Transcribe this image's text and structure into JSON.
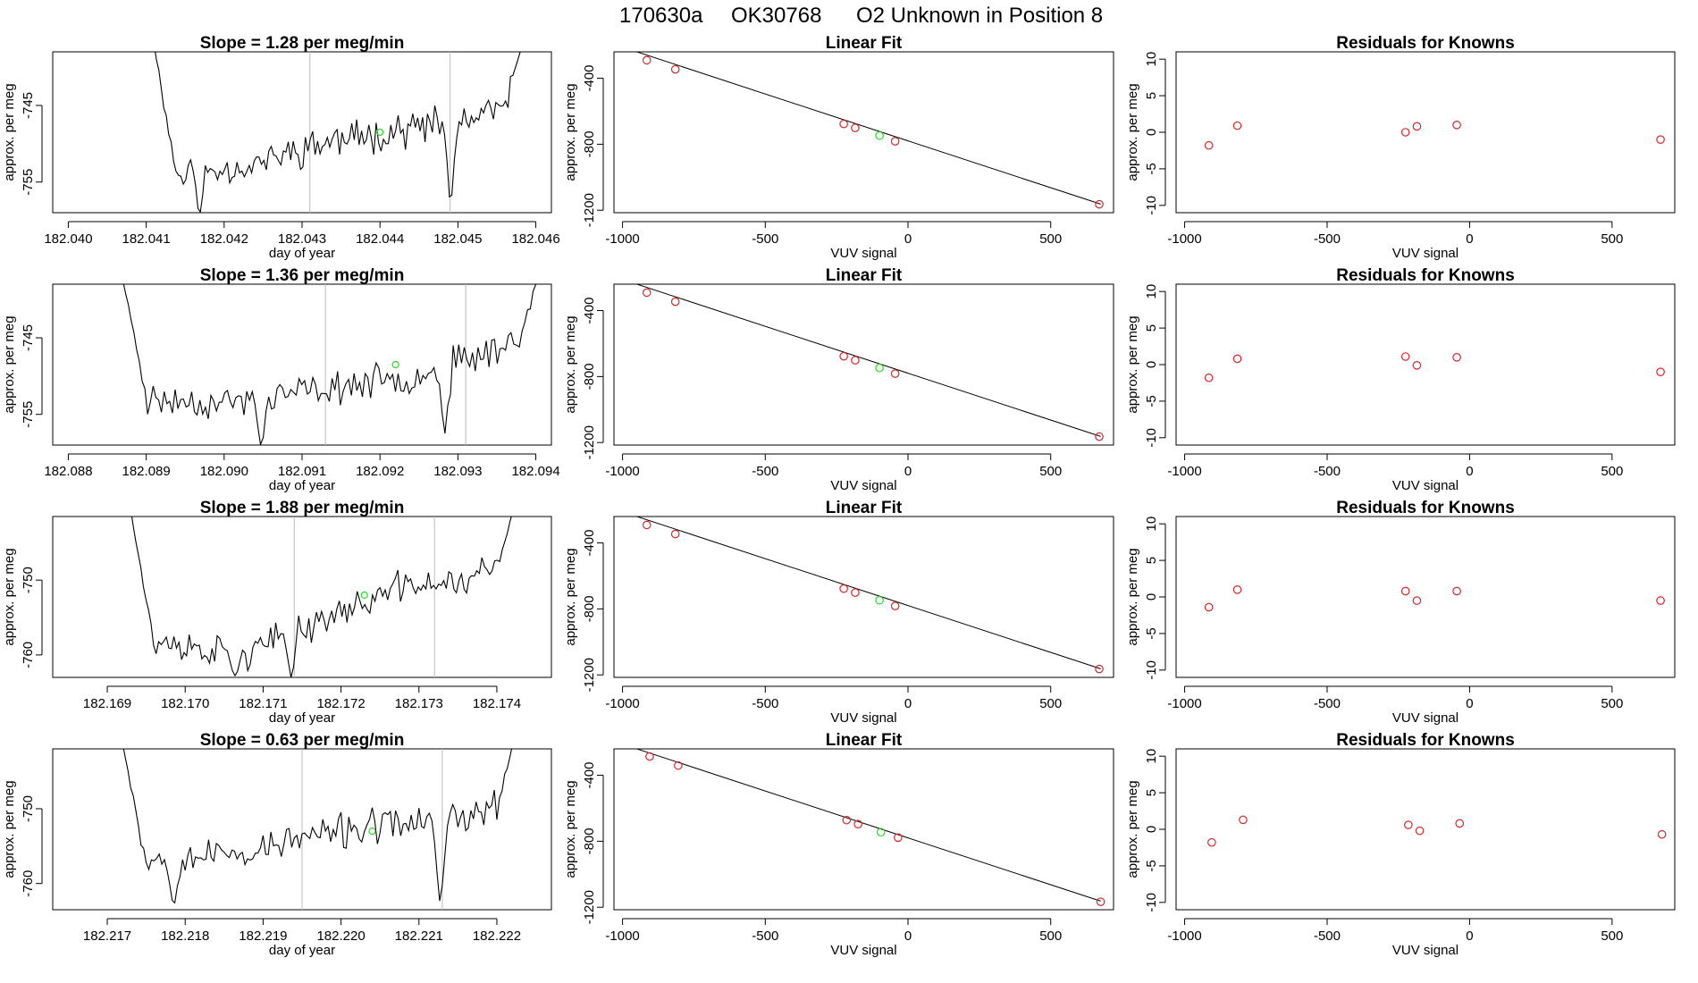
{
  "page_title": {
    "date": "170630a",
    "sample": "OK30768",
    "description": "O2 Unknown in Position  8"
  },
  "colors": {
    "line": "#000000",
    "known": "#d62728",
    "unknown": "#22dd22",
    "vline": "#bbbbbb"
  },
  "chart_data": [
    {
      "row": 1,
      "panel": "time-series",
      "type": "line",
      "title": "Slope =  1.28  per meg/min",
      "xlabel": "day of year",
      "ylabel": "approx. per meg",
      "xlim": [
        182.0398,
        182.0462
      ],
      "ylim": [
        -759.0,
        -738.0
      ],
      "xticks": [
        182.04,
        182.041,
        182.042,
        182.043,
        182.044,
        182.045,
        182.046
      ],
      "xtick_labels": [
        "182.040",
        "182.041",
        "182.042",
        "182.043",
        "182.044",
        "182.045",
        "182.046"
      ],
      "yticks": [
        -745,
        -755
      ],
      "ytick_labels": [
        "-745",
        "-755"
      ],
      "vlines": [
        182.0431,
        182.0449
      ],
      "unknown_point": {
        "x": 182.044,
        "y": -748.5
      },
      "series": {
        "x_start": 182.0411,
        "x_end": 182.0458,
        "start": -737.0,
        "end": -738.0,
        "baseline": [
          [
            0,
            -754
          ],
          [
            0.25,
            -753
          ],
          [
            0.45,
            -750
          ],
          [
            0.7,
            -748
          ],
          [
            0.88,
            -747
          ],
          [
            1,
            -744
          ]
        ],
        "noise": 2.8,
        "seed": 11,
        "dips": [
          [
            0.125,
            -759.5
          ],
          [
            0.81,
            -759
          ]
        ]
      }
    },
    {
      "row": 1,
      "panel": "linear-fit",
      "type": "scatter",
      "title": "Linear Fit",
      "xlabel": "VUV signal",
      "ylabel": "approx. per meg",
      "xlim": [
        -1030,
        720
      ],
      "ylim": [
        -1215,
        -240
      ],
      "xticks": [
        -1000,
        -500,
        0,
        500
      ],
      "xtick_labels": [
        "-1000",
        "-500",
        "0",
        "500"
      ],
      "yticks": [
        -400,
        -800,
        -1200
      ],
      "ytick_labels": [
        "-400",
        "-800",
        "-1200"
      ],
      "fit_line": [
        [
          -955,
          -237
        ],
        [
          675,
          -1163
        ]
      ],
      "known_points": [
        [
          -915,
          -291
        ],
        [
          -815,
          -346
        ],
        [
          -225,
          -677
        ],
        [
          -185,
          -701
        ],
        [
          -45,
          -782
        ],
        [
          670,
          -1164
        ]
      ],
      "unknown_points": [
        [
          -100,
          -748
        ]
      ]
    },
    {
      "row": 1,
      "panel": "residuals",
      "type": "scatter",
      "title": "Residuals for Knowns",
      "xlabel": "VUV signal",
      "ylabel": "approx. per meg",
      "xlim": [
        -1030,
        720
      ],
      "ylim": [
        -11,
        11
      ],
      "xticks": [
        -1000,
        -500,
        0,
        500
      ],
      "xtick_labels": [
        "-1000",
        "-500",
        "0",
        "500"
      ],
      "yticks": [
        10,
        5,
        0,
        -5,
        -10
      ],
      "ytick_labels": [
        "10",
        "5",
        "0",
        "-5",
        "-10"
      ],
      "known_points": [
        [
          -915,
          -1.8
        ],
        [
          -815,
          0.9
        ],
        [
          -225,
          0.0
        ],
        [
          -185,
          0.8
        ],
        [
          -45,
          1.0
        ],
        [
          670,
          -1.0
        ]
      ]
    },
    {
      "row": 2,
      "panel": "time-series",
      "type": "line",
      "title": "Slope =  1.36  per meg/min",
      "xlabel": "day of year",
      "ylabel": "approx. per meg",
      "xlim": [
        182.0878,
        182.0942
      ],
      "ylim": [
        -759.0,
        -738.0
      ],
      "xticks": [
        182.088,
        182.089,
        182.09,
        182.091,
        182.092,
        182.093,
        182.094
      ],
      "xtick_labels": [
        "182.088",
        "182.089",
        "182.090",
        "182.091",
        "182.092",
        "182.093",
        "182.094"
      ],
      "yticks": [
        -745,
        -755
      ],
      "ytick_labels": [
        "-745",
        "-755"
      ],
      "vlines": [
        182.0913,
        182.0931
      ],
      "unknown_point": {
        "x": 182.0922,
        "y": -748.5
      },
      "series": {
        "x_start": 182.0887,
        "x_end": 182.094,
        "start": -737.5,
        "end": -738.0,
        "baseline": [
          [
            0,
            -753
          ],
          [
            0.25,
            -753.5
          ],
          [
            0.45,
            -752
          ],
          [
            0.7,
            -750
          ],
          [
            0.88,
            -747
          ],
          [
            1,
            -744
          ]
        ],
        "noise": 2.6,
        "seed": 23,
        "dips": [
          [
            0.335,
            -759.5
          ],
          [
            0.78,
            -757.5
          ]
        ]
      }
    },
    {
      "row": 2,
      "panel": "linear-fit",
      "type": "scatter",
      "title": "Linear Fit",
      "xlabel": "VUV signal",
      "ylabel": "approx. per meg",
      "xlim": [
        -1030,
        720
      ],
      "ylim": [
        -1215,
        -240
      ],
      "xticks": [
        -1000,
        -500,
        0,
        500
      ],
      "xtick_labels": [
        "-1000",
        "-500",
        "0",
        "500"
      ],
      "yticks": [
        -400,
        -800,
        -1200
      ],
      "ytick_labels": [
        "-400",
        "-800",
        "-1200"
      ],
      "fit_line": [
        [
          -955,
          -237
        ],
        [
          675,
          -1163
        ]
      ],
      "known_points": [
        [
          -915,
          -291
        ],
        [
          -815,
          -346
        ],
        [
          -225,
          -677
        ],
        [
          -185,
          -701
        ],
        [
          -45,
          -782
        ],
        [
          670,
          -1164
        ]
      ],
      "unknown_points": [
        [
          -100,
          -748
        ]
      ]
    },
    {
      "row": 2,
      "panel": "residuals",
      "type": "scatter",
      "title": "Residuals for Knowns",
      "xlabel": "VUV signal",
      "ylabel": "approx. per meg",
      "xlim": [
        -1030,
        720
      ],
      "ylim": [
        -11,
        11
      ],
      "xticks": [
        -1000,
        -500,
        0,
        500
      ],
      "xtick_labels": [
        "-1000",
        "-500",
        "0",
        "500"
      ],
      "yticks": [
        10,
        5,
        0,
        -5,
        -10
      ],
      "ytick_labels": [
        "10",
        "5",
        "0",
        "-5",
        "-10"
      ],
      "known_points": [
        [
          -915,
          -1.8
        ],
        [
          -815,
          0.8
        ],
        [
          -225,
          1.1
        ],
        [
          -185,
          -0.1
        ],
        [
          -45,
          1.0
        ],
        [
          670,
          -1.0
        ]
      ]
    },
    {
      "row": 3,
      "panel": "time-series",
      "type": "line",
      "title": "Slope =  1.88  per meg/min",
      "xlabel": "day of year",
      "ylabel": "approx. per meg",
      "xlim": [
        182.1683,
        182.1747
      ],
      "ylim": [
        -763.0,
        -741.5
      ],
      "xticks": [
        182.169,
        182.17,
        182.171,
        182.172,
        182.173,
        182.174
      ],
      "xtick_labels": [
        "182.169",
        "182.170",
        "182.171",
        "182.172",
        "182.173",
        "182.174"
      ],
      "yticks": [
        -750,
        -760
      ],
      "ytick_labels": [
        "-750",
        "-760"
      ],
      "vlines": [
        182.1714,
        182.1732
      ],
      "unknown_point": {
        "x": 182.1723,
        "y": -752.0
      },
      "series": {
        "x_start": 182.1693,
        "x_end": 182.1742,
        "start": -740.5,
        "end": -741.0,
        "baseline": [
          [
            0,
            -758
          ],
          [
            0.3,
            -760
          ],
          [
            0.45,
            -756.5
          ],
          [
            0.7,
            -751
          ],
          [
            0.88,
            -750
          ],
          [
            1,
            -747
          ]
        ],
        "noise": 2.6,
        "seed": 37,
        "dips": [
          [
            0.275,
            -763
          ],
          [
            0.42,
            -763
          ]
        ]
      }
    },
    {
      "row": 3,
      "panel": "linear-fit",
      "type": "scatter",
      "title": "Linear Fit",
      "xlabel": "VUV signal",
      "ylabel": "approx. per meg",
      "xlim": [
        -1030,
        720
      ],
      "ylim": [
        -1215,
        -240
      ],
      "xticks": [
        -1000,
        -500,
        0,
        500
      ],
      "xtick_labels": [
        "-1000",
        "-500",
        "0",
        "500"
      ],
      "yticks": [
        -400,
        -800,
        -1200
      ],
      "ytick_labels": [
        "-400",
        "-800",
        "-1200"
      ],
      "fit_line": [
        [
          -955,
          -237
        ],
        [
          675,
          -1163
        ]
      ],
      "known_points": [
        [
          -915,
          -291
        ],
        [
          -815,
          -346
        ],
        [
          -225,
          -677
        ],
        [
          -185,
          -701
        ],
        [
          -45,
          -782
        ],
        [
          670,
          -1164
        ]
      ],
      "unknown_points": [
        [
          -100,
          -748
        ]
      ]
    },
    {
      "row": 3,
      "panel": "residuals",
      "type": "scatter",
      "title": "Residuals for Knowns",
      "xlabel": "VUV signal",
      "ylabel": "approx. per meg",
      "xlim": [
        -1030,
        720
      ],
      "ylim": [
        -11,
        11
      ],
      "xticks": [
        -1000,
        -500,
        0,
        500
      ],
      "xtick_labels": [
        "-1000",
        "-500",
        "0",
        "500"
      ],
      "yticks": [
        10,
        5,
        0,
        -5,
        -10
      ],
      "ytick_labels": [
        "10",
        "5",
        "0",
        "-5",
        "-10"
      ],
      "known_points": [
        [
          -915,
          -1.4
        ],
        [
          -815,
          1.0
        ],
        [
          -225,
          0.8
        ],
        [
          -185,
          -0.5
        ],
        [
          -45,
          0.8
        ],
        [
          670,
          -0.5
        ]
      ]
    },
    {
      "row": 4,
      "panel": "time-series",
      "type": "line",
      "title": "Slope =  0.63  per meg/min",
      "xlabel": "day of year",
      "ylabel": "approx. per meg",
      "xlim": [
        182.2163,
        182.2227
      ],
      "ylim": [
        -763.5,
        -742.0
      ],
      "xticks": [
        182.217,
        182.218,
        182.219,
        182.22,
        182.221,
        182.222
      ],
      "xtick_labels": [
        "182.217",
        "182.218",
        "182.219",
        "182.220",
        "182.221",
        "182.222"
      ],
      "yticks": [
        -750,
        -760
      ],
      "ytick_labels": [
        "-750",
        "-760"
      ],
      "vlines": [
        182.2195,
        182.2213
      ],
      "unknown_point": {
        "x": 182.2204,
        "y": -753.0
      },
      "series": {
        "x_start": 182.2172,
        "x_end": 182.2222,
        "start": -741.5,
        "end": -741.5,
        "baseline": [
          [
            0,
            -757
          ],
          [
            0.3,
            -756
          ],
          [
            0.5,
            -753.5
          ],
          [
            0.7,
            -752
          ],
          [
            0.85,
            -751.5
          ],
          [
            1,
            -749
          ]
        ],
        "noise": 2.8,
        "seed": 53,
        "dips": [
          [
            0.13,
            -763.5
          ],
          [
            0.815,
            -763.5
          ]
        ]
      }
    },
    {
      "row": 4,
      "panel": "linear-fit",
      "type": "scatter",
      "title": "Linear Fit",
      "xlabel": "VUV signal",
      "ylabel": "approx. per meg",
      "xlim": [
        -1030,
        720
      ],
      "ylim": [
        -1215,
        -240
      ],
      "xticks": [
        -1000,
        -500,
        0,
        500
      ],
      "xtick_labels": [
        "-1000",
        "-500",
        "0",
        "500"
      ],
      "yticks": [
        -400,
        -800,
        -1200
      ],
      "ytick_labels": [
        "-400",
        "-800",
        "-1200"
      ],
      "fit_line": [
        [
          -955,
          -237
        ],
        [
          675,
          -1163
        ]
      ],
      "known_points": [
        [
          -905,
          -286
        ],
        [
          -805,
          -341
        ],
        [
          -215,
          -672
        ],
        [
          -175,
          -696
        ],
        [
          -35,
          -778
        ],
        [
          675,
          -1167
        ]
      ],
      "unknown_points": [
        [
          -95,
          -745
        ]
      ]
    },
    {
      "row": 4,
      "panel": "residuals",
      "type": "scatter",
      "title": "Residuals for Knowns",
      "xlabel": "VUV signal",
      "ylabel": "approx. per meg",
      "xlim": [
        -1030,
        720
      ],
      "ylim": [
        -11,
        11
      ],
      "xticks": [
        -1000,
        -500,
        0,
        500
      ],
      "xtick_labels": [
        "-1000",
        "-500",
        "0",
        "500"
      ],
      "yticks": [
        10,
        5,
        0,
        -5,
        -10
      ],
      "ytick_labels": [
        "10",
        "5",
        "0",
        "-5",
        "-10"
      ],
      "known_points": [
        [
          -905,
          -1.8
        ],
        [
          -795,
          1.3
        ],
        [
          -215,
          0.6
        ],
        [
          -175,
          -0.2
        ],
        [
          -35,
          0.8
        ],
        [
          675,
          -0.7
        ]
      ]
    }
  ]
}
